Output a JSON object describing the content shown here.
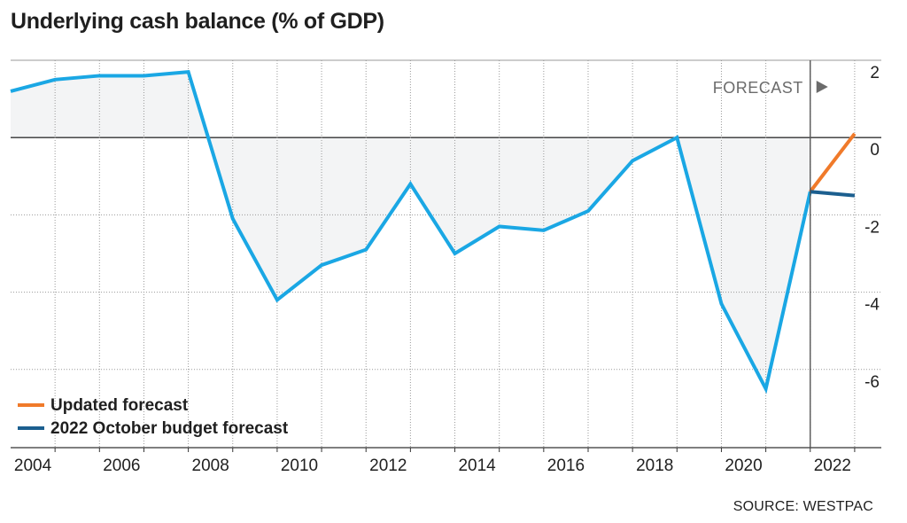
{
  "title": "Underlying cash balance (% of GDP)",
  "source": "SOURCE: WESTPAC",
  "forecast_label": "FORECAST",
  "colors": {
    "history": "#1aa7e4",
    "updated_forecast": "#f07a2a",
    "budget_forecast": "#1c5f8f",
    "fill": "#f3f4f5",
    "grid": "#999999",
    "zero_line": "#333333"
  },
  "chart_data": {
    "type": "line",
    "title": "Underlying cash balance (% of GDP)",
    "xlabel": "",
    "ylabel": "",
    "xlim": [
      2003.5,
      2023.1
    ],
    "ylim": [
      -8.0,
      2.0
    ],
    "x_ticks": [
      {
        "value": 2004,
        "label": "2004"
      },
      {
        "value": 2006,
        "label": "2006"
      },
      {
        "value": 2008,
        "label": "2008"
      },
      {
        "value": 2010,
        "label": "2010"
      },
      {
        "value": 2012,
        "label": "2012"
      },
      {
        "value": 2014,
        "label": "2014"
      },
      {
        "value": 2016,
        "label": "2016"
      },
      {
        "value": 2018,
        "label": "2018"
      },
      {
        "value": 2020,
        "label": "2020"
      },
      {
        "value": 2022,
        "label": "2022"
      }
    ],
    "y_ticks": [
      {
        "value": 2,
        "label": "2"
      },
      {
        "value": 0,
        "label": "0"
      },
      {
        "value": -2,
        "label": "-2"
      },
      {
        "value": -4,
        "label": "-4"
      },
      {
        "value": -6,
        "label": "-6"
      }
    ],
    "forecast_start": 2021.5,
    "grid": "horizontal and vertical dotted",
    "legend_position": "bottom-left",
    "series": [
      {
        "key": "history",
        "x": [
          2003.5,
          2004.5,
          2005.5,
          2006.5,
          2007.5,
          2008.5,
          2009.5,
          2010.5,
          2011.5,
          2012.5,
          2013.5,
          2014.5,
          2015.5,
          2016.5,
          2017.5,
          2018.5,
          2019.5,
          2020.5,
          2021.5
        ],
        "y": [
          1.2,
          1.5,
          1.6,
          1.6,
          1.7,
          -2.1,
          -4.2,
          -3.3,
          -2.9,
          -1.2,
          -3.0,
          -2.3,
          -2.4,
          -1.9,
          -0.6,
          0.0,
          -4.3,
          -6.5,
          -1.4
        ]
      },
      {
        "key": "updated_forecast",
        "name": "Updated forecast",
        "x": [
          2021.5,
          2022.5
        ],
        "y": [
          -1.4,
          0.1
        ]
      },
      {
        "key": "budget_forecast",
        "name": "2022 October budget forecast",
        "x": [
          2021.5,
          2022.5
        ],
        "y": [
          -1.4,
          -1.5
        ]
      }
    ]
  }
}
